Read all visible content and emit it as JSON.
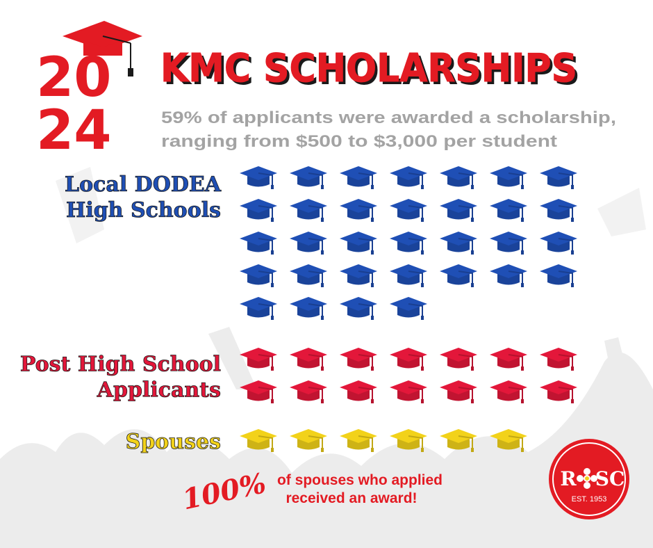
{
  "header": {
    "year_lines": [
      "20",
      "24"
    ],
    "title": "KMC SCHOLARSHIPS",
    "subtitle_lines": [
      "59% of applicants were awarded a scholarship,",
      "ranging from $500 to $3,000 per student"
    ]
  },
  "groups": [
    {
      "label_lines": [
        "Local DODEA",
        "High Schools"
      ],
      "count": 32,
      "color": "#1f4fb5"
    },
    {
      "label_lines": [
        "Post High School",
        "Applicants"
      ],
      "count": 14,
      "color": "#e3173a"
    },
    {
      "label_lines": [
        "Spouses"
      ],
      "count": 6,
      "color": "#f2d21a"
    }
  ],
  "footnote": {
    "stat": "100%",
    "lines": [
      "of spouses who applied",
      "received an award!"
    ]
  },
  "logo": {
    "left": "R",
    "right": "SC",
    "established": "EST. 1953"
  }
}
